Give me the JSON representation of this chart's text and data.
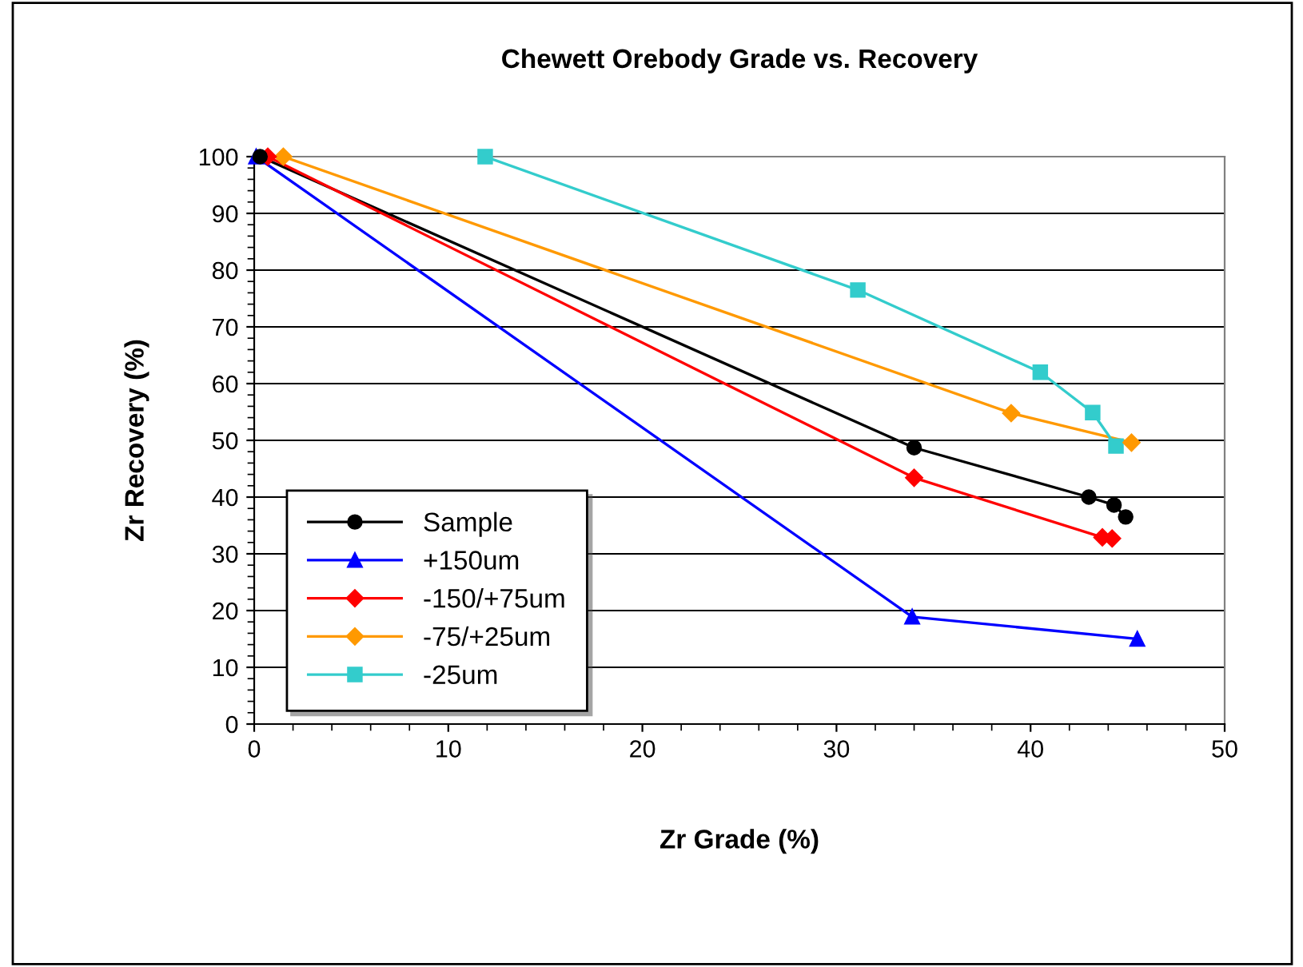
{
  "chart_data": {
    "type": "line",
    "title": "Chewett Orebody Grade vs. Recovery",
    "xlabel": "Zr Grade (%)",
    "ylabel": "Zr Recovery (%)",
    "xlim": [
      0,
      50
    ],
    "xticks": [
      0,
      10,
      20,
      30,
      40,
      50
    ],
    "ylim": [
      0,
      100
    ],
    "yticks": [
      0,
      10,
      20,
      30,
      40,
      50,
      60,
      70,
      80,
      90,
      100
    ],
    "grid": "y",
    "legend": "bottom left",
    "line_style": "solid",
    "series": [
      {
        "name": "Sample",
        "color": "#000000",
        "marker": "circle",
        "x": [
          0.3,
          34.0,
          43.0,
          44.3,
          44.9
        ],
        "values": [
          100,
          48.7,
          40.0,
          38.6,
          36.5
        ]
      },
      {
        "name": "+150um",
        "color": "#0000ff",
        "marker": "triangle",
        "x": [
          0.1,
          33.9,
          45.5
        ],
        "values": [
          100,
          18.9,
          15.0
        ]
      },
      {
        "name": "-150/+75um",
        "color": "#ff0000",
        "marker": "diamond",
        "x": [
          0.7,
          34.0,
          43.7,
          44.2
        ],
        "values": [
          100,
          43.4,
          32.9,
          32.7
        ]
      },
      {
        "name": "-75/+25um",
        "color": "#ff9900",
        "marker": "diamond",
        "x": [
          1.5,
          39.0,
          45.2
        ],
        "values": [
          100,
          54.8,
          49.6
        ]
      },
      {
        "name": "-25um",
        "color": "#33cccc",
        "marker": "square",
        "x": [
          11.9,
          31.1,
          40.5,
          43.2,
          44.4
        ],
        "values": [
          100,
          76.5,
          62.0,
          54.9,
          49.0
        ]
      }
    ]
  }
}
